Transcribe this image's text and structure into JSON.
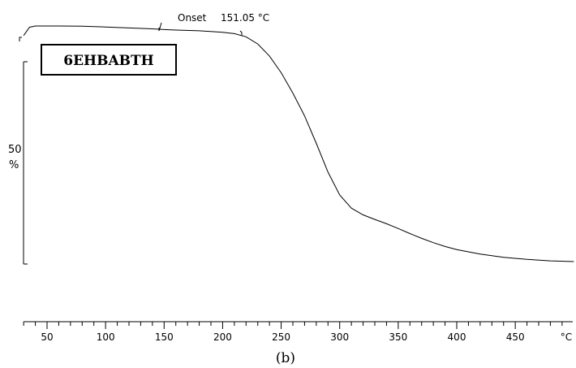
{
  "chart_data": {
    "type": "line",
    "sample_label": "6EHBABTH",
    "onset_text": "Onset",
    "onset_value": "151.05 °C",
    "scale_bar_value": "50",
    "scale_bar_unit": "%",
    "x_unit": "°C",
    "caption": "(b)",
    "xlim": [
      30,
      710
    ],
    "ylim": [
      0,
      100
    ],
    "x_ticks": [
      50,
      100,
      150,
      200,
      250,
      300,
      350,
      400,
      450
    ],
    "grid": false,
    "series": [
      {
        "x": [
          30,
          35,
          40,
          50,
          60,
          80,
          100,
          120,
          140,
          150,
          160,
          180,
          200,
          210,
          220,
          230,
          240,
          250,
          260,
          270,
          280,
          290,
          300,
          310,
          320,
          330,
          340,
          350,
          360,
          370,
          380,
          390,
          400,
          420,
          440,
          460,
          480,
          500
        ],
        "y": [
          96,
          99.5,
          100,
          100,
          100,
          99.9,
          99.6,
          99.2,
          98.8,
          98.5,
          98.3,
          98,
          97.4,
          96.8,
          95.5,
          92.5,
          87.5,
          80.5,
          72,
          62.5,
          51,
          39,
          29.5,
          24,
          21.2,
          19.3,
          17.5,
          15.5,
          13.4,
          11.4,
          9.6,
          8,
          6.7,
          4.8,
          3.5,
          2.6,
          2,
          1.7
        ]
      }
    ]
  }
}
